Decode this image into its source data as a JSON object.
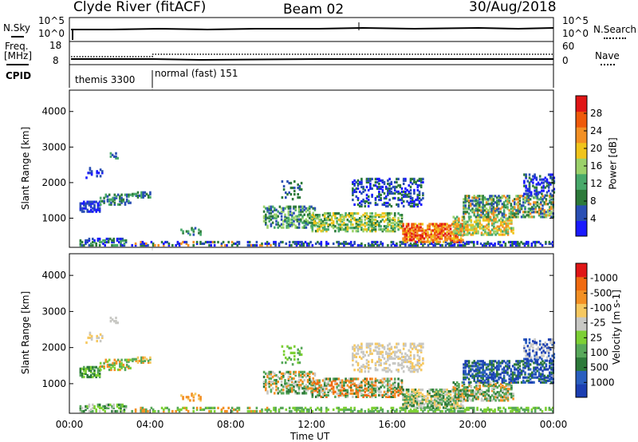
{
  "header": {
    "title": "Clyde River (fitACF)",
    "beam": "Beam 02",
    "date": "30/Aug/2018"
  },
  "status_panels": {
    "nsky_label": "N.Sky",
    "nsky_ticks": [
      "10^5",
      "10^0"
    ],
    "nsearch_label": "N.Search",
    "nsearch_ticks": [
      "10^5",
      "10^0"
    ],
    "freq_label": "Freq.",
    "freq_unit": "[MHz]",
    "freq_ticks": [
      "18",
      "8"
    ],
    "nave_label": "Nave",
    "nave_ticks": [
      "60",
      "0"
    ],
    "cpid_label": "CPID",
    "cpid_segments": [
      {
        "name": "themis",
        "id": "3300",
        "start_hour": 0,
        "end_hour": 4
      },
      {
        "name": "normal (fast)",
        "id": "151",
        "start_hour": 4,
        "end_hour": 24
      }
    ]
  },
  "chart_data": [
    {
      "type": "heatmap",
      "name": "power",
      "colorbar_label": "Power [dB]",
      "ylabel": "Slant Range [km]",
      "yticks": [
        1000,
        2000,
        3000,
        4000
      ],
      "ylim": [
        180,
        4600
      ],
      "xlim_hours": [
        0,
        24
      ],
      "colorbar_ticks": [
        "4",
        "8",
        "12",
        "16",
        "20",
        "24",
        "28"
      ],
      "colors": [
        "#1a1aff",
        "#2a4fb4",
        "#2d7a3a",
        "#48a96a",
        "#9bd16a",
        "#f0c41b",
        "#f39024",
        "#ef5a0a",
        "#e01616"
      ]
    },
    {
      "type": "heatmap",
      "name": "velocity",
      "colorbar_label": "Velocity [m s-1]",
      "ylabel": "Slant Range [km]",
      "yticks": [
        1000,
        2000,
        3000,
        4000
      ],
      "ylim": [
        180,
        4600
      ],
      "xlim_hours": [
        0,
        24
      ],
      "colorbar_ticks": [
        "1000",
        "500",
        "100",
        "25",
        "-25",
        "-100",
        "-500",
        "-1000"
      ],
      "colors": [
        "#1c3fb2",
        "#2a5fbf",
        "#2d7a3a",
        "#58a85a",
        "#7dd035",
        "#c8c8c4",
        "#f6c860",
        "#f39024",
        "#f06a10",
        "#e01616"
      ],
      "xlabel": "Time UT",
      "xticks": [
        "00:00",
        "04:00",
        "08:00",
        "12:00",
        "16:00",
        "20:00",
        "00:00"
      ]
    }
  ]
}
